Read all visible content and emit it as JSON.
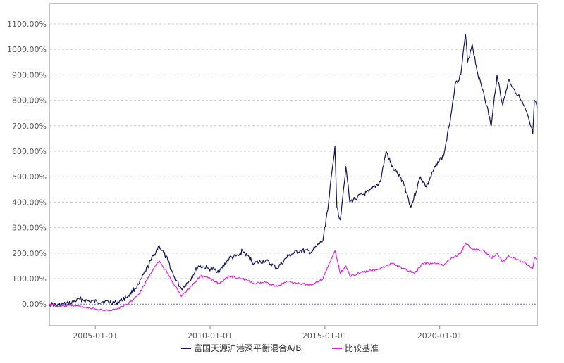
{
  "chart_data": {
    "type": "line",
    "y_ticks": [
      "0.00%",
      "100.00%",
      "200.00%",
      "300.00%",
      "400.00%",
      "500.00%",
      "600.00%",
      "700.00%",
      "800.00%",
      "900.00%",
      "1000.00%",
      "1100.00%"
    ],
    "x_ticks": [
      "2005-01-01",
      "2010-01-01",
      "2015-01-01",
      "2020-01-01"
    ],
    "x_range": [
      "2003-01-01",
      "2024-03-31"
    ],
    "ylim": [
      -85,
      1180
    ],
    "grid": "horizontal dashed",
    "legend_position": "bottom-center",
    "series": [
      {
        "name": "富国天源沪港深平衡混合A/B",
        "color": "#131356",
        "points": [
          [
            "2003-01-01",
            0
          ],
          [
            "2003-06-01",
            -5
          ],
          [
            "2003-12-01",
            5
          ],
          [
            "2004-05-01",
            20
          ],
          [
            "2004-10-01",
            10
          ],
          [
            "2005-06-01",
            10
          ],
          [
            "2005-12-01",
            5
          ],
          [
            "2006-06-01",
            30
          ],
          [
            "2006-12-01",
            80
          ],
          [
            "2007-06-01",
            170
          ],
          [
            "2007-10-15",
            230
          ],
          [
            "2008-03-01",
            170
          ],
          [
            "2008-06-01",
            110
          ],
          [
            "2008-10-01",
            60
          ],
          [
            "2009-02-01",
            90
          ],
          [
            "2009-07-01",
            150
          ],
          [
            "2009-12-01",
            140
          ],
          [
            "2010-06-01",
            130
          ],
          [
            "2010-11-01",
            180
          ],
          [
            "2011-04-01",
            190
          ],
          [
            "2011-06-01",
            210
          ],
          [
            "2011-12-01",
            160
          ],
          [
            "2012-06-01",
            170
          ],
          [
            "2012-12-01",
            140
          ],
          [
            "2013-06-01",
            190
          ],
          [
            "2013-12-01",
            210
          ],
          [
            "2014-06-01",
            205
          ],
          [
            "2014-12-01",
            250
          ],
          [
            "2015-03-01",
            400
          ],
          [
            "2015-06-10",
            620
          ],
          [
            "2015-07-10",
            380
          ],
          [
            "2015-09-01",
            330
          ],
          [
            "2015-12-01",
            540
          ],
          [
            "2016-02-01",
            400
          ],
          [
            "2016-06-01",
            420
          ],
          [
            "2016-12-01",
            440
          ],
          [
            "2017-06-01",
            480
          ],
          [
            "2017-09-01",
            600
          ],
          [
            "2017-12-01",
            540
          ],
          [
            "2018-06-01",
            480
          ],
          [
            "2018-10-01",
            380
          ],
          [
            "2019-03-01",
            500
          ],
          [
            "2019-06-01",
            460
          ],
          [
            "2019-12-01",
            560
          ],
          [
            "2020-03-01",
            580
          ],
          [
            "2020-06-01",
            700
          ],
          [
            "2020-09-01",
            860
          ],
          [
            "2020-12-01",
            900
          ],
          [
            "2021-02-15",
            1060
          ],
          [
            "2021-03-20",
            950
          ],
          [
            "2021-06-01",
            1020
          ],
          [
            "2021-09-01",
            900
          ],
          [
            "2021-12-01",
            830
          ],
          [
            "2022-04-01",
            700
          ],
          [
            "2022-07-01",
            900
          ],
          [
            "2022-10-01",
            780
          ],
          [
            "2023-01-01",
            880
          ],
          [
            "2023-06-01",
            820
          ],
          [
            "2023-10-01",
            760
          ],
          [
            "2024-01-20",
            670
          ],
          [
            "2024-02-15",
            800
          ],
          [
            "2024-03-31",
            770
          ]
        ]
      },
      {
        "name": "比较基准",
        "color": "#e020e0",
        "points": [
          [
            "2003-01-01",
            0
          ],
          [
            "2003-06-01",
            -10
          ],
          [
            "2004-01-01",
            -5
          ],
          [
            "2004-06-01",
            -10
          ],
          [
            "2005-01-01",
            -20
          ],
          [
            "2005-06-01",
            -25
          ],
          [
            "2005-12-01",
            -20
          ],
          [
            "2006-06-01",
            0
          ],
          [
            "2006-12-01",
            40
          ],
          [
            "2007-06-01",
            120
          ],
          [
            "2007-10-15",
            170
          ],
          [
            "2008-03-01",
            120
          ],
          [
            "2008-06-01",
            80
          ],
          [
            "2008-10-01",
            30
          ],
          [
            "2009-03-01",
            70
          ],
          [
            "2009-08-01",
            110
          ],
          [
            "2010-01-01",
            100
          ],
          [
            "2010-06-01",
            80
          ],
          [
            "2010-11-01",
            110
          ],
          [
            "2011-06-01",
            100
          ],
          [
            "2011-12-01",
            80
          ],
          [
            "2012-06-01",
            85
          ],
          [
            "2012-12-01",
            70
          ],
          [
            "2013-06-01",
            90
          ],
          [
            "2013-12-01",
            80
          ],
          [
            "2014-06-01",
            75
          ],
          [
            "2014-12-01",
            100
          ],
          [
            "2015-06-10",
            210
          ],
          [
            "2015-09-01",
            120
          ],
          [
            "2015-12-01",
            150
          ],
          [
            "2016-02-01",
            110
          ],
          [
            "2016-06-01",
            120
          ],
          [
            "2016-12-01",
            130
          ],
          [
            "2017-06-01",
            140
          ],
          [
            "2017-12-01",
            160
          ],
          [
            "2018-06-01",
            140
          ],
          [
            "2018-12-01",
            120
          ],
          [
            "2019-04-01",
            160
          ],
          [
            "2019-12-01",
            160
          ],
          [
            "2020-03-01",
            150
          ],
          [
            "2020-07-01",
            180
          ],
          [
            "2020-12-01",
            200
          ],
          [
            "2021-02-15",
            240
          ],
          [
            "2021-06-01",
            215
          ],
          [
            "2021-12-01",
            210
          ],
          [
            "2022-04-01",
            180
          ],
          [
            "2022-07-01",
            200
          ],
          [
            "2022-10-01",
            165
          ],
          [
            "2023-01-01",
            190
          ],
          [
            "2023-06-01",
            175
          ],
          [
            "2023-10-01",
            160
          ],
          [
            "2024-01-20",
            140
          ],
          [
            "2024-02-15",
            180
          ],
          [
            "2024-03-31",
            175
          ]
        ]
      }
    ]
  }
}
